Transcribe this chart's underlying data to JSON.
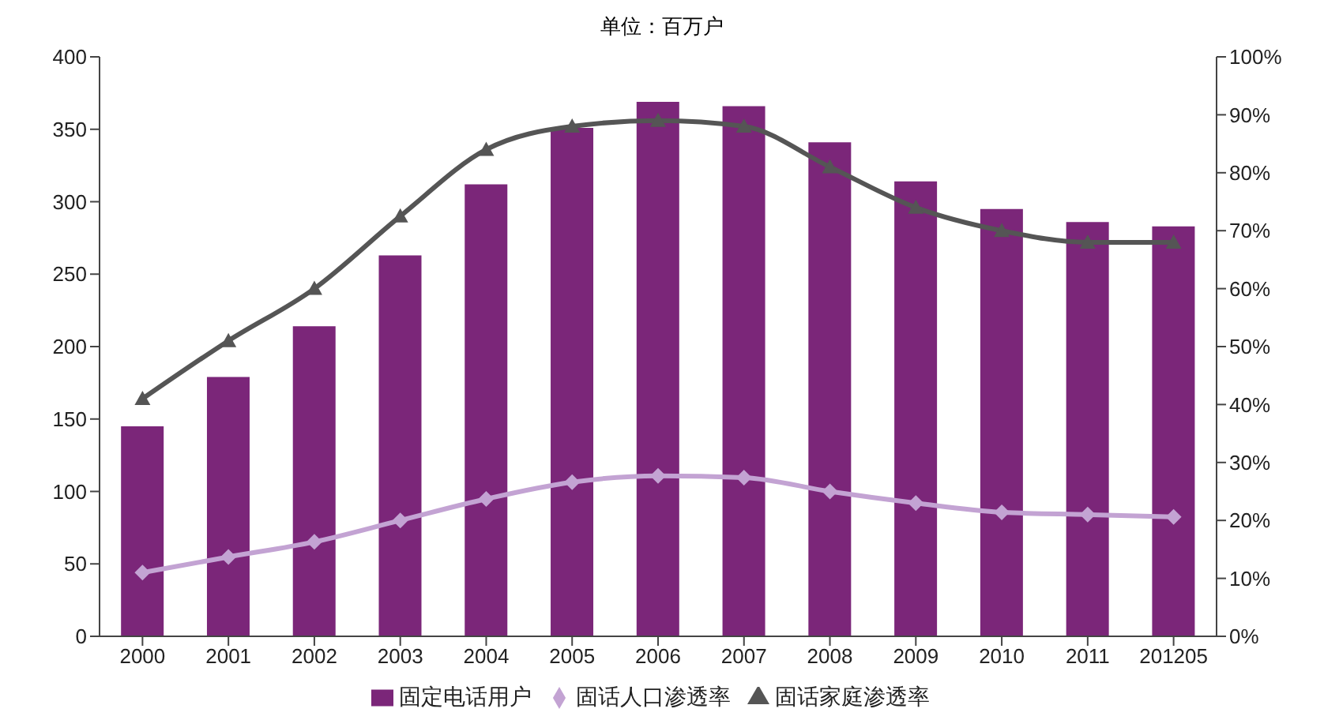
{
  "chart_data": {
    "type": "bar",
    "subtitle": "单位：百万户",
    "categories": [
      "2000",
      "2001",
      "2002",
      "2003",
      "2004",
      "2005",
      "2006",
      "2007",
      "2008",
      "2009",
      "2010",
      "2011",
      "201205"
    ],
    "series": [
      {
        "name": "固定电话用户",
        "color": "#7b2679",
        "values": [
          145,
          179,
          214,
          263,
          312,
          351,
          369,
          366,
          341,
          314,
          295,
          286,
          283
        ]
      },
      {
        "name": "固话人口渗透率",
        "type": "line",
        "axis": "y2",
        "marker": "diamond",
        "color": "#c3a3d3",
        "values": [
          11,
          13.7,
          16.3,
          20,
          23.7,
          26.6,
          27.7,
          27.4,
          25,
          23,
          21.4,
          21,
          20.6
        ]
      },
      {
        "name": "固话家庭渗透率",
        "type": "line",
        "axis": "y2",
        "marker": "triangle",
        "color": "#555555",
        "values": [
          41,
          51,
          60,
          72.5,
          84,
          88,
          89,
          88,
          81,
          74,
          70,
          68,
          68
        ]
      }
    ],
    "ylim": [
      0,
      400
    ],
    "yticks": [
      0,
      50,
      100,
      150,
      200,
      250,
      300,
      350,
      400
    ],
    "y2lim": [
      0,
      100
    ],
    "y2ticks": [
      {
        "value": 0,
        "label": "0%"
      },
      {
        "value": 10,
        "label": "10%"
      },
      {
        "value": 20,
        "label": "20%"
      },
      {
        "value": 30,
        "label": "30%"
      },
      {
        "value": 40,
        "label": "40%"
      },
      {
        "value": 50,
        "label": "50%"
      },
      {
        "value": 60,
        "label": "60%"
      },
      {
        "value": 70,
        "label": "70%"
      },
      {
        "value": 80,
        "label": "80%"
      },
      {
        "value": 90,
        "label": "90%"
      },
      {
        "value": 100,
        "label": "100%"
      }
    ],
    "grid": false,
    "legend": "bottom"
  }
}
